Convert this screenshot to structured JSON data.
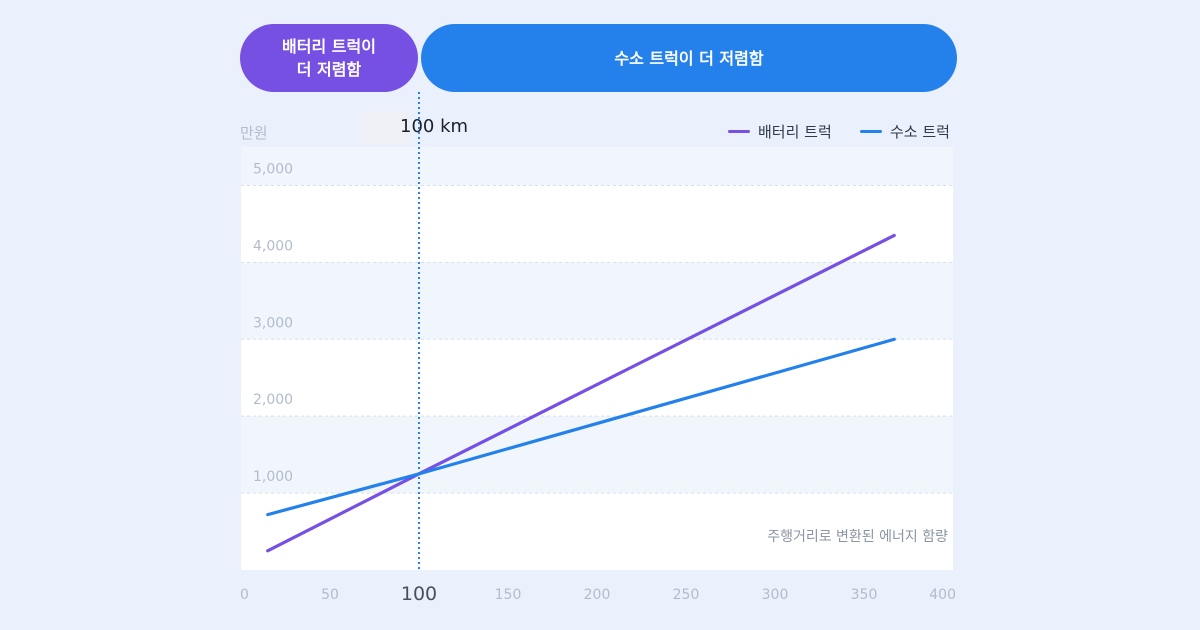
{
  "header": {
    "battery_cheaper": "배터리 트럭이\n더 저렴함",
    "hydrogen_cheaper": "수소 트럭이 더 저렴함"
  },
  "chart_data": {
    "type": "line",
    "unit_label": "만원",
    "crossover_label": "100 km",
    "annotation": "주행거리로 변환된 에너지 함량",
    "x": [
      15,
      100,
      367
    ],
    "xlim": [
      0,
      400
    ],
    "ylim": [
      0,
      5500
    ],
    "x_ticks": [
      0,
      50,
      100,
      150,
      200,
      250,
      300,
      350,
      400
    ],
    "x_tick_labels": [
      "0",
      "50",
      "100",
      "150",
      "200",
      "250",
      "300",
      "350",
      "400"
    ],
    "y_ticks": [
      1000,
      2000,
      3000,
      4000,
      5000
    ],
    "y_tick_labels": [
      "1,000",
      "2,000",
      "3,000",
      "4,000",
      "5,000"
    ],
    "highlight_x": 100,
    "series": [
      {
        "name": "배터리 트럭",
        "color": "#7650e3",
        "values": [
          250,
          1250,
          4350
        ]
      },
      {
        "name": "수소 트럭",
        "color": "#2481ec",
        "values": [
          720,
          1250,
          3000
        ]
      }
    ],
    "legend_position": "top-right",
    "grid": true
  }
}
